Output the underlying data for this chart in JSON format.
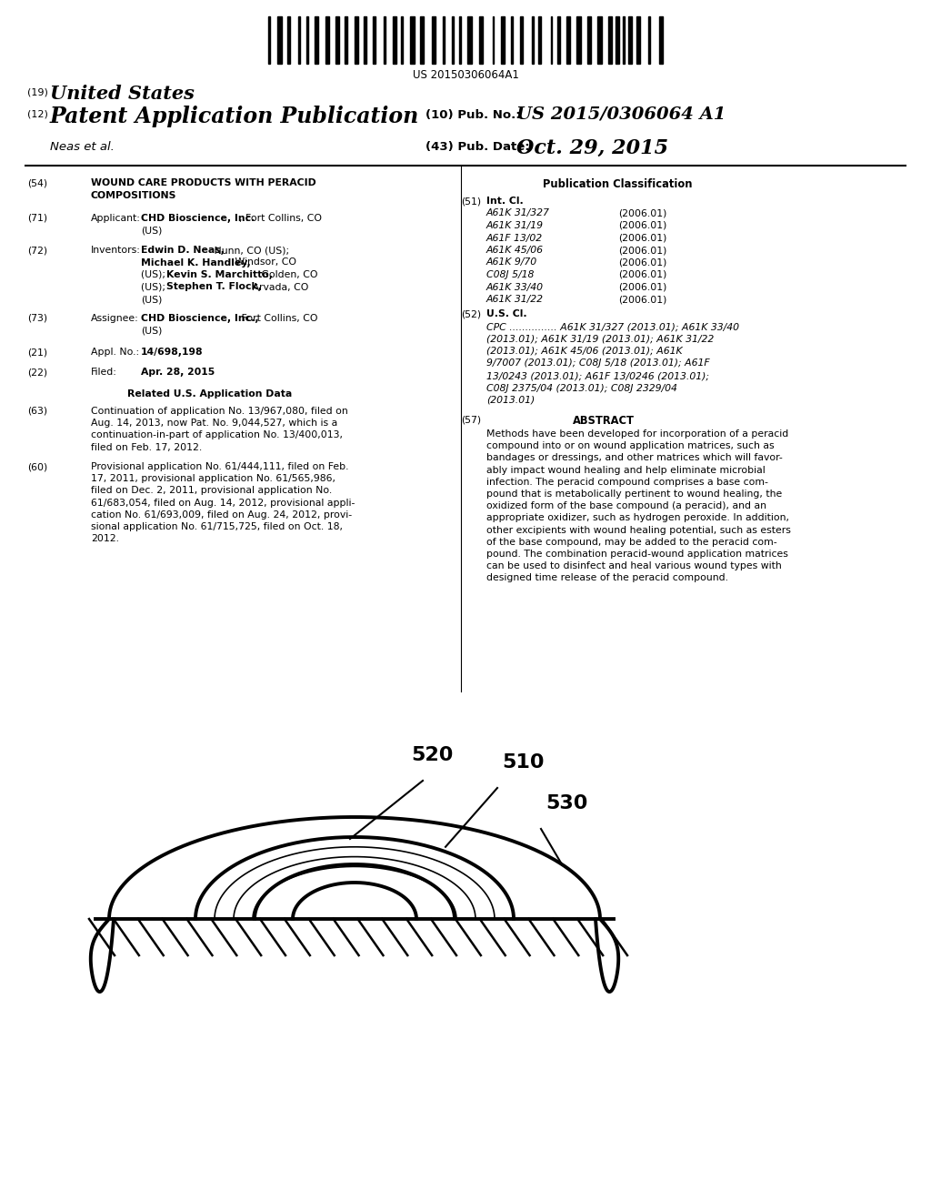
{
  "background_color": "#ffffff",
  "barcode_text": "US 20150306064A1",
  "header_19": "(19)",
  "header_19_text": "United States",
  "header_12": "(12)",
  "header_12_text": "Patent Application Publication",
  "header_10": "(10) Pub. No.:",
  "header_10_val": "US 2015/0306064 A1",
  "header_neas": "Neas et al.",
  "header_43": "(43) Pub. Date:",
  "header_43_val": "Oct. 29, 2015",
  "section54_num": "(54)",
  "section54_title_1": "WOUND CARE PRODUCTS WITH PERACID",
  "section54_title_2": "COMPOSITIONS",
  "section71_num": "(71)",
  "section71_label": "Applicant:",
  "section72_num": "(72)",
  "section72_label": "Inventors:",
  "section73_num": "(73)",
  "section73_label": "Assignee:",
  "section21_num": "(21)",
  "section21_label": "Appl. No.:",
  "section21_val": "14/698,198",
  "section22_num": "(22)",
  "section22_label": "Filed:",
  "section22_val": "Apr. 28, 2015",
  "related_title": "Related U.S. Application Data",
  "section63_num": "(63)",
  "section63_text": "Continuation of application No. 13/967,080, filed on\nAug. 14, 2013, now Pat. No. 9,044,527, which is a\ncontinuation-in-part of application No. 13/400,013,\nfiled on Feb. 17, 2012.",
  "section60_num": "(60)",
  "section60_text": "Provisional application No. 61/444,111, filed on Feb.\n17, 2011, provisional application No. 61/565,986,\nfiled on Dec. 2, 2011, provisional application No.\n61/683,054, filed on Aug. 14, 2012, provisional appli-\ncation No. 61/693,009, filed on Aug. 24, 2012, provi-\nsional application No. 61/715,725, filed on Oct. 18,\n2012.",
  "pub_class_title": "Publication Classification",
  "section51_num": "(51)",
  "section51_label": "Int. Cl.",
  "int_cl_entries": [
    [
      "A61K 31/327",
      "(2006.01)"
    ],
    [
      "A61K 31/19",
      "(2006.01)"
    ],
    [
      "A61F 13/02",
      "(2006.01)"
    ],
    [
      "A61K 45/06",
      "(2006.01)"
    ],
    [
      "A61K 9/70",
      "(2006.01)"
    ],
    [
      "C08J 5/18",
      "(2006.01)"
    ],
    [
      "A61K 33/40",
      "(2006.01)"
    ],
    [
      "A61K 31/22",
      "(2006.01)"
    ]
  ],
  "section52_num": "(52)",
  "section52_label": "U.S. Cl.",
  "cpc_line1": "CPC ............... A61K 31/327 (2013.01); A61K 33/40",
  "cpc_line2": "(2013.01); A61K 31/19 (2013.01); A61K 31/22",
  "cpc_line3": "(2013.01); A61K 45/06 (2013.01); A61K",
  "cpc_line4": "9/7007 (2013.01); C08J 5/18 (2013.01); A61F",
  "cpc_line5": "13/0243 (2013.01); A61F 13/0246 (2013.01);",
  "cpc_line6": "C08J 2375/04 (2013.01); C08J 2329/04",
  "cpc_line7": "(2013.01)",
  "section57_num": "(57)",
  "section57_label": "ABSTRACT",
  "abstract_text": "Methods have been developed for incorporation of a peracid\ncompound into or on wound application matrices, such as\nbandages or dressings, and other matrices which will favor-\nably impact wound healing and help eliminate microbial\ninfection. The peracid compound comprises a base com-\npound that is metabolically pertinent to wound healing, the\noxidized form of the base compound (a peracid), and an\nappropriate oxidizer, such as hydrogen peroxide. In addition,\nother excipients with wound healing potential, such as esters\nof the base compound, may be added to the peracid com-\npound. The combination peracid-wound application matrices\ncan be used to disinfect and heal various wound types with\ndesigned time release of the peracid compound.",
  "label_510": "510",
  "label_520": "520",
  "label_530": "530"
}
